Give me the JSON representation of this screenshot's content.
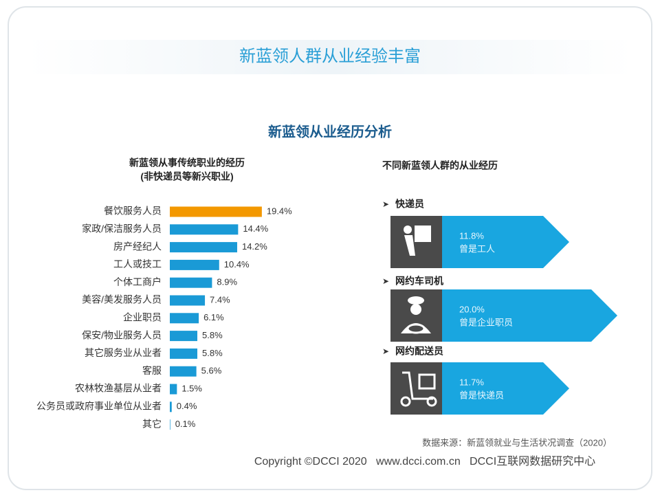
{
  "header": {
    "title": "新蓝领人群从业经验丰富"
  },
  "section_title": "新蓝领从业经历分析",
  "chart_data": {
    "type": "hbar",
    "title": "新蓝领从事传统职业的经历",
    "subtitle": "(非快递员等新兴职业)",
    "categories": [
      "餐饮服务人员",
      "家政/保洁服务人员",
      "房产经纪人",
      "工人或技工",
      "个体工商户",
      "美容/美发服务人员",
      "企业职员",
      "保安/物业服务人员",
      "其它服务业从业者",
      "客服",
      "农林牧渔基层从业者",
      "公务员或政府事业单位从业者",
      "其它"
    ],
    "values": [
      19.4,
      14.4,
      14.2,
      10.4,
      8.9,
      7.4,
      6.1,
      5.8,
      5.8,
      5.6,
      1.5,
      0.4,
      0.1
    ],
    "value_labels": [
      "19.4%",
      "14.4%",
      "14.2%",
      "10.4%",
      "8.9%",
      "7.4%",
      "6.1%",
      "5.8%",
      "5.8%",
      "5.6%",
      "1.5%",
      "0.4%",
      "0.1%"
    ],
    "colors": [
      "#f39800",
      "#1a9ad6",
      "#1a9ad6",
      "#1a9ad6",
      "#1a9ad6",
      "#1a9ad6",
      "#1a9ad6",
      "#1a9ad6",
      "#1a9ad6",
      "#1a9ad6",
      "#1a9ad6",
      "#1a9ad6",
      "#1a9ad6"
    ]
  },
  "groups": {
    "title": "不同新蓝领人群的从业经历",
    "items": [
      {
        "label": "快递员",
        "percent": "11.8%",
        "desc": "曾是工人"
      },
      {
        "label": "网约车司机",
        "percent": "20.0%",
        "desc": "曾是企业职员"
      },
      {
        "label": "网约配送员",
        "percent": "11.7%",
        "desc": "曾是快递员"
      }
    ]
  },
  "source": "数据来源：新蓝领就业与生活状况调查（2020）",
  "footer": "Copyright ©DCCI 2020   www.dcci.com.cn   DCCI互联网数据研究中心"
}
